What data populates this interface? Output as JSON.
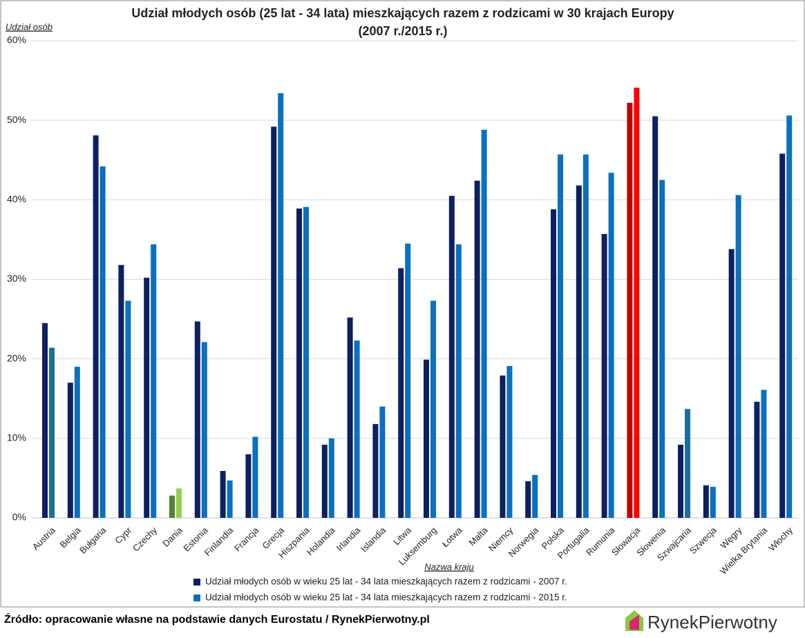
{
  "chart_data": {
    "type": "bar",
    "title": [
      "Udział młodych osób (25 lat - 34 lata) mieszkających razem z rodzicami w 30 krajach Europy",
      "(2007 r./2015 r.)"
    ],
    "y_label": "Udział osób",
    "x_label": "Nazwa kraju",
    "categories": [
      "Austria",
      "Belgia",
      "Bułgaria",
      "Cypr",
      "Czechy",
      "Dania",
      "Estonia",
      "Finlandia",
      "Francja",
      "Grecja",
      "Hiszpania",
      "Holandia",
      "Irlandia",
      "Islandia",
      "Litwa",
      "Luksemburg",
      "Łotwa",
      "Malta",
      "Niemcy",
      "Norwegia",
      "Polska",
      "Portugalia",
      "Rumunia",
      "Słowacja",
      "Słowenia",
      "Szwajcaria",
      "Szwecja",
      "Węgry",
      "Wielka Brytania",
      "Włochy"
    ],
    "series": [
      {
        "name": "Udział młodych osób w wieku 25 lat - 34 lata mieszkających razem z rodzicami - 2007 r.",
        "color": "#0d2162",
        "point_colors": {
          "5": "#548235",
          "23": "#c00000"
        },
        "values": [
          24.5,
          17.0,
          48.1,
          31.8,
          30.2,
          2.8,
          24.7,
          5.9,
          8.0,
          49.2,
          38.9,
          9.2,
          25.2,
          11.8,
          31.4,
          19.9,
          40.5,
          42.4,
          17.9,
          4.6,
          38.8,
          41.8,
          35.7,
          52.2,
          50.5,
          9.2,
          4.1,
          33.8,
          14.6,
          45.8
        ]
      },
      {
        "name": "Udział młodych osób w wieku 25 lat - 34 lata mieszkających razem z rodzicami - 2015 r.",
        "color": "#0a70c0",
        "point_colors": {
          "0": "#1b6f9f",
          "5": "#92d050",
          "23": "#ff0000",
          "25": "#1b6f9f"
        },
        "values": [
          21.4,
          19.0,
          44.2,
          27.3,
          34.4,
          3.7,
          22.1,
          4.7,
          10.2,
          53.4,
          39.1,
          10.0,
          22.3,
          14.0,
          34.5,
          27.3,
          34.4,
          48.8,
          19.1,
          5.4,
          45.7,
          45.7,
          43.4,
          54.1,
          42.5,
          13.7,
          3.9,
          40.6,
          16.1,
          50.6
        ]
      }
    ],
    "ylim": [
      0,
      60
    ],
    "yticks": [
      {
        "value": 0,
        "label": "0%"
      },
      {
        "value": 10,
        "label": "10%"
      },
      {
        "value": 20,
        "label": "20%"
      },
      {
        "value": 30,
        "label": "30%"
      },
      {
        "value": 40,
        "label": "40%"
      },
      {
        "value": 50,
        "label": "50%"
      },
      {
        "value": 60,
        "label": "60%"
      }
    ],
    "grid": true,
    "source": "Źródło: opracowanie własne na podstawie danych Eurostatu / RynekPierwotny.pl",
    "logo": [
      "Rynek",
      "Pierwotny"
    ]
  }
}
